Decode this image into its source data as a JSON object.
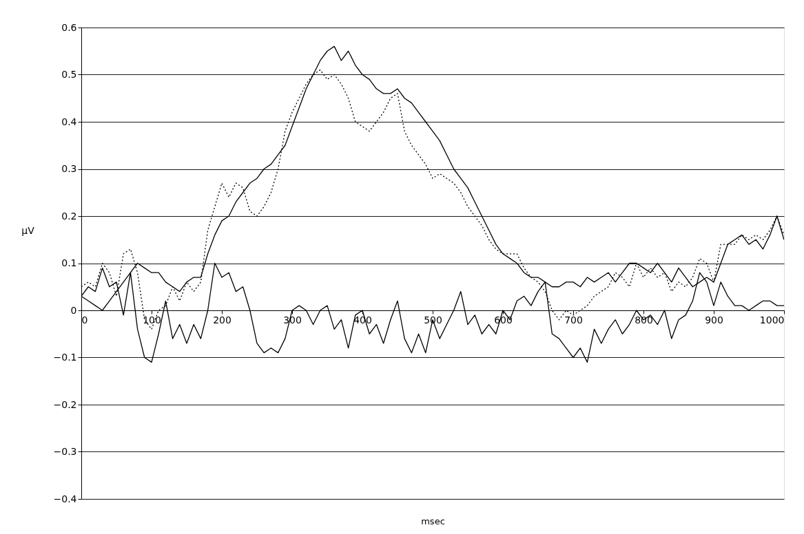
{
  "chart_data": {
    "type": "line",
    "xlabel": "msec",
    "ylabel": "μV",
    "x": [
      0,
      10,
      20,
      30,
      40,
      50,
      60,
      70,
      80,
      90,
      100,
      110,
      120,
      130,
      140,
      150,
      160,
      170,
      180,
      190,
      200,
      210,
      220,
      230,
      240,
      250,
      260,
      270,
      280,
      290,
      300,
      310,
      320,
      330,
      340,
      350,
      360,
      370,
      380,
      390,
      400,
      410,
      420,
      430,
      440,
      450,
      460,
      470,
      480,
      490,
      500,
      510,
      520,
      530,
      540,
      550,
      560,
      570,
      580,
      590,
      600,
      610,
      620,
      630,
      640,
      650,
      660,
      670,
      680,
      690,
      700,
      710,
      720,
      730,
      740,
      750,
      760,
      770,
      780,
      790,
      800,
      810,
      820,
      830,
      840,
      850,
      860,
      870,
      880,
      890,
      900,
      910,
      920,
      930,
      940,
      950,
      960,
      970,
      980,
      990,
      1000
    ],
    "series": [
      {
        "color": "#000000",
        "line_style": "solid",
        "values": [
          0.03,
          0.02,
          0.01,
          0.0,
          0.02,
          0.04,
          0.06,
          0.08,
          0.1,
          0.09,
          0.08,
          0.08,
          0.06,
          0.05,
          0.04,
          0.06,
          0.07,
          0.07,
          0.12,
          0.16,
          0.19,
          0.2,
          0.23,
          0.25,
          0.27,
          0.28,
          0.3,
          0.31,
          0.33,
          0.35,
          0.39,
          0.43,
          0.47,
          0.5,
          0.53,
          0.55,
          0.56,
          0.53,
          0.55,
          0.52,
          0.5,
          0.49,
          0.47,
          0.46,
          0.46,
          0.47,
          0.45,
          0.44,
          0.42,
          0.4,
          0.38,
          0.36,
          0.33,
          0.3,
          0.28,
          0.26,
          0.23,
          0.2,
          0.17,
          0.14,
          0.12,
          0.11,
          0.1,
          0.08,
          0.07,
          0.07,
          0.06,
          0.05,
          0.05,
          0.06,
          0.06,
          0.05,
          0.07,
          0.06,
          0.07,
          0.08,
          0.06,
          0.08,
          0.1,
          0.1,
          0.09,
          0.08,
          0.1,
          0.08,
          0.06,
          0.09,
          0.07,
          0.05,
          0.06,
          0.07,
          0.06,
          0.1,
          0.14,
          0.15,
          0.16,
          0.14,
          0.15,
          0.13,
          0.16,
          0.2,
          0.15
        ]
      },
      {
        "color": "#000000",
        "line_style": "dotted",
        "values": [
          0.05,
          0.06,
          0.05,
          0.1,
          0.08,
          0.03,
          0.12,
          0.13,
          0.08,
          -0.02,
          -0.04,
          0.0,
          0.01,
          0.05,
          0.02,
          0.06,
          0.04,
          0.06,
          0.17,
          0.22,
          0.27,
          0.24,
          0.27,
          0.26,
          0.21,
          0.2,
          0.22,
          0.25,
          0.3,
          0.38,
          0.42,
          0.45,
          0.48,
          0.5,
          0.51,
          0.49,
          0.5,
          0.48,
          0.45,
          0.4,
          0.39,
          0.38,
          0.4,
          0.42,
          0.45,
          0.46,
          0.38,
          0.35,
          0.33,
          0.31,
          0.28,
          0.29,
          0.28,
          0.27,
          0.25,
          0.22,
          0.2,
          0.18,
          0.15,
          0.13,
          0.12,
          0.12,
          0.12,
          0.09,
          0.07,
          0.06,
          0.04,
          0.0,
          -0.02,
          0.0,
          -0.01,
          0.0,
          0.01,
          0.03,
          0.04,
          0.05,
          0.08,
          0.07,
          0.05,
          0.1,
          0.07,
          0.09,
          0.07,
          0.08,
          0.04,
          0.06,
          0.05,
          0.07,
          0.11,
          0.1,
          0.06,
          0.14,
          0.14,
          0.14,
          0.16,
          0.15,
          0.16,
          0.15,
          0.17,
          0.2,
          0.16
        ]
      },
      {
        "color": "#000000",
        "line_style": "solid",
        "values": [
          0.03,
          0.05,
          0.04,
          0.09,
          0.05,
          0.06,
          -0.01,
          0.08,
          -0.04,
          -0.1,
          -0.11,
          -0.05,
          0.02,
          -0.06,
          -0.03,
          -0.07,
          -0.03,
          -0.06,
          0.0,
          0.1,
          0.07,
          0.08,
          0.04,
          0.05,
          0.0,
          -0.07,
          -0.09,
          -0.08,
          -0.09,
          -0.06,
          0.0,
          0.01,
          0.0,
          -0.03,
          0.0,
          0.01,
          -0.04,
          -0.02,
          -0.08,
          -0.01,
          0.0,
          -0.05,
          -0.03,
          -0.07,
          -0.02,
          0.02,
          -0.06,
          -0.09,
          -0.05,
          -0.09,
          -0.02,
          -0.06,
          -0.03,
          0.0,
          0.04,
          -0.03,
          -0.01,
          -0.05,
          -0.03,
          -0.05,
          0.0,
          -0.02,
          0.02,
          0.03,
          0.01,
          0.04,
          0.06,
          -0.05,
          -0.06,
          -0.08,
          -0.1,
          -0.08,
          -0.11,
          -0.04,
          -0.07,
          -0.04,
          -0.02,
          -0.05,
          -0.03,
          0.0,
          -0.02,
          -0.01,
          -0.03,
          0.0,
          -0.06,
          -0.02,
          -0.01,
          0.02,
          0.08,
          0.06,
          0.01,
          0.06,
          0.03,
          0.01,
          0.01,
          0.0,
          0.01,
          0.02,
          0.02,
          0.01,
          0.01
        ]
      }
    ],
    "xlim": [
      0,
      1000
    ],
    "xticks": [
      0,
      100,
      200,
      300,
      400,
      500,
      600,
      700,
      800,
      900,
      1000
    ],
    "ylim": [
      -0.4,
      0.6
    ],
    "yticks": [
      -0.4,
      -0.3,
      -0.2,
      -0.1,
      0,
      0.1,
      0.2,
      0.3,
      0.4,
      0.5,
      0.6
    ],
    "grid": "y"
  }
}
